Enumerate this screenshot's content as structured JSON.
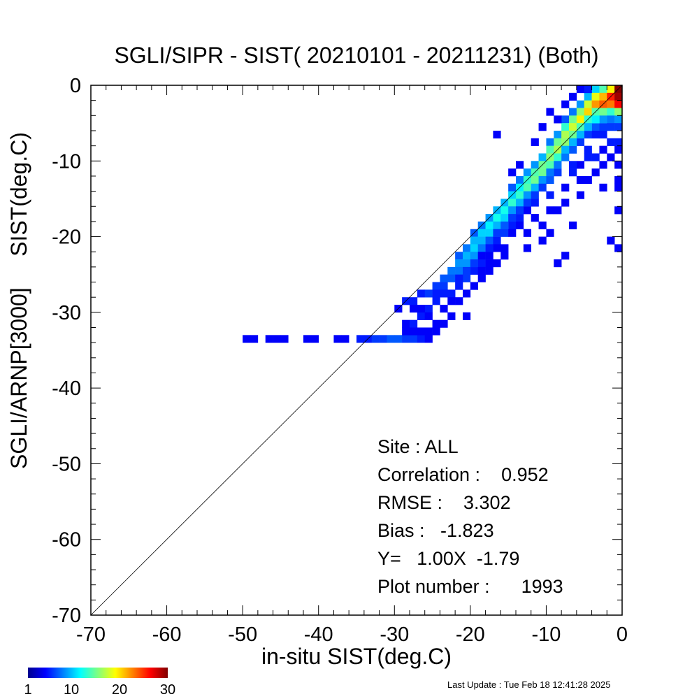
{
  "chart_data": {
    "type": "heatmap",
    "title": "SGLI/SIPR - SIST( 20210101 - 20211231) (Both)",
    "xlabel": "in-situ SIST(deg.C)",
    "ylabel": "SGLI/ARNP[3000]     SIST(deg.C)",
    "xlim": [
      -70,
      0
    ],
    "ylim": [
      -70,
      0
    ],
    "x_ticks": [
      "-70",
      "-60",
      "-50",
      "-40",
      "-30",
      "-20",
      "-10",
      "0"
    ],
    "y_ticks": [
      "0",
      "-10",
      "-20",
      "-30",
      "-40",
      "-50",
      "-60",
      "-70"
    ],
    "reference_line": "1:1",
    "grid": false,
    "stats": [
      "Site : ALL",
      "Correlation :    0.952",
      "RMSE :    3.302",
      "Bias :   -1.823",
      "Y=   1.00X  -1.79",
      "Plot number :      1993"
    ],
    "colorbar": {
      "colormap": "jet",
      "min": 1,
      "max": 30,
      "labels": [
        "1",
        "10",
        "20",
        "30"
      ]
    },
    "density_cells_note": "2-D histogram of counts per 1 deg.C bin",
    "cells": [
      [
        -49.5,
        -33.5,
        1
      ],
      [
        -48.5,
        -33.5,
        1
      ],
      [
        -46.5,
        -33.5,
        1
      ],
      [
        -45.5,
        -33.5,
        1
      ],
      [
        -44.5,
        -33.5,
        1
      ],
      [
        -41.5,
        -33.5,
        1
      ],
      [
        -40.5,
        -33.5,
        1
      ],
      [
        -37.5,
        -33.5,
        1
      ],
      [
        -36.5,
        -33.5,
        1
      ],
      [
        -34.5,
        -33.5,
        2
      ],
      [
        -33.5,
        -33.5,
        2
      ],
      [
        -32.5,
        -33.5,
        3
      ],
      [
        -31.5,
        -33.5,
        3
      ],
      [
        -30.5,
        -33.5,
        4
      ],
      [
        -29.5,
        -33.5,
        4
      ],
      [
        -28.5,
        -33.5,
        3
      ],
      [
        -27.5,
        -33.5,
        3
      ],
      [
        -26.5,
        -33.5,
        2
      ],
      [
        -25.5,
        -33.5,
        1
      ],
      [
        -29.5,
        -29.5,
        1
      ],
      [
        -28.5,
        -28.5,
        2
      ],
      [
        -27.5,
        -28.5,
        2
      ],
      [
        -27.5,
        -29.5,
        1
      ],
      [
        -28.5,
        -31.5,
        1
      ],
      [
        -27.5,
        -31.5,
        2
      ],
      [
        -26.5,
        -30.5,
        2
      ],
      [
        -26.5,
        -27.5,
        2
      ],
      [
        -25.5,
        -27.5,
        3
      ],
      [
        -25.5,
        -29.5,
        2
      ],
      [
        -25.5,
        -30.5,
        1
      ],
      [
        -24.5,
        -26.5,
        3
      ],
      [
        -24.5,
        -28.5,
        2
      ],
      [
        -24.5,
        -32.5,
        1
      ],
      [
        -23.5,
        -25.5,
        4
      ],
      [
        -23.5,
        -26.5,
        3
      ],
      [
        -23.5,
        -29.5,
        1
      ],
      [
        -23.5,
        -31.5,
        1
      ],
      [
        -22.5,
        -24.5,
        5
      ],
      [
        -22.5,
        -25.5,
        4
      ],
      [
        -22.5,
        -27.5,
        2
      ],
      [
        -22.5,
        -30.5,
        1
      ],
      [
        -21.5,
        -22.5,
        4
      ],
      [
        -21.5,
        -23.5,
        6
      ],
      [
        -21.5,
        -24.5,
        5
      ],
      [
        -21.5,
        -26.5,
        2
      ],
      [
        -21.5,
        -28.5,
        1
      ],
      [
        -20.5,
        -21.5,
        5
      ],
      [
        -20.5,
        -22.5,
        7
      ],
      [
        -20.5,
        -23.5,
        6
      ],
      [
        -20.5,
        -25.5,
        3
      ],
      [
        -20.5,
        -30.5,
        1
      ],
      [
        -19.5,
        -19.5,
        4
      ],
      [
        -19.5,
        -20.5,
        7
      ],
      [
        -19.5,
        -21.5,
        8
      ],
      [
        -19.5,
        -22.5,
        6
      ],
      [
        -19.5,
        -24.5,
        2
      ],
      [
        -18.5,
        -18.5,
        5
      ],
      [
        -18.5,
        -19.5,
        8
      ],
      [
        -18.5,
        -20.5,
        7
      ],
      [
        -18.5,
        -21.5,
        5
      ],
      [
        -18.5,
        -23.5,
        2
      ],
      [
        -17.5,
        -17.5,
        6
      ],
      [
        -17.5,
        -18.5,
        9
      ],
      [
        -17.5,
        -19.5,
        8
      ],
      [
        -17.5,
        -20.5,
        4
      ],
      [
        -17.5,
        -22.5,
        1
      ],
      [
        -16.5,
        -16.5,
        7
      ],
      [
        -16.5,
        -17.5,
        10
      ],
      [
        -16.5,
        -18.5,
        7
      ],
      [
        -16.5,
        -20.5,
        2
      ],
      [
        -16.5,
        -23.5,
        1
      ],
      [
        -15.5,
        -15.5,
        7
      ],
      [
        -15.5,
        -16.5,
        10
      ],
      [
        -15.5,
        -17.5,
        8
      ],
      [
        -15.5,
        -19.5,
        3
      ],
      [
        -14.5,
        -13.5,
        4
      ],
      [
        -14.5,
        -14.5,
        8
      ],
      [
        -14.5,
        -15.5,
        11
      ],
      [
        -14.5,
        -16.5,
        6
      ],
      [
        -14.5,
        -18.5,
        2
      ],
      [
        -13.5,
        -12.5,
        5
      ],
      [
        -13.5,
        -13.5,
        9
      ],
      [
        -13.5,
        -14.5,
        11
      ],
      [
        -13.5,
        -15.5,
        7
      ],
      [
        -13.5,
        -17.5,
        2
      ],
      [
        -12.5,
        -11.5,
        6
      ],
      [
        -12.5,
        -12.5,
        11
      ],
      [
        -12.5,
        -13.5,
        12
      ],
      [
        -12.5,
        -14.5,
        6
      ],
      [
        -12.5,
        -16.5,
        1
      ],
      [
        -11.5,
        -10.5,
        6
      ],
      [
        -11.5,
        -11.5,
        12
      ],
      [
        -11.5,
        -12.5,
        13
      ],
      [
        -11.5,
        -13.5,
        7
      ],
      [
        -11.5,
        -15.5,
        2
      ],
      [
        -10.5,
        -9.5,
        7
      ],
      [
        -10.5,
        -10.5,
        13
      ],
      [
        -10.5,
        -11.5,
        13
      ],
      [
        -10.5,
        -12.5,
        6
      ],
      [
        -10.5,
        -18.5,
        1
      ],
      [
        -9.5,
        -7.5,
        5
      ],
      [
        -9.5,
        -8.5,
        12
      ],
      [
        -9.5,
        -9.5,
        14
      ],
      [
        -9.5,
        -10.5,
        12
      ],
      [
        -9.5,
        -12.5,
        4
      ],
      [
        -9.5,
        -14.5,
        2
      ],
      [
        -8.5,
        -6.5,
        6
      ],
      [
        -8.5,
        -7.5,
        13
      ],
      [
        -8.5,
        -8.5,
        15
      ],
      [
        -8.5,
        -9.5,
        11
      ],
      [
        -8.5,
        -11.5,
        3
      ],
      [
        -8.5,
        -16.5,
        1
      ],
      [
        -7.5,
        -4.5,
        4
      ],
      [
        -7.5,
        -5.5,
        11
      ],
      [
        -7.5,
        -6.5,
        15
      ],
      [
        -7.5,
        -7.5,
        14
      ],
      [
        -7.5,
        -9.5,
        5
      ],
      [
        -7.5,
        -13.5,
        1
      ],
      [
        -6.5,
        -3.5,
        5
      ],
      [
        -6.5,
        -4.5,
        13
      ],
      [
        -6.5,
        -5.5,
        16
      ],
      [
        -6.5,
        -6.5,
        13
      ],
      [
        -6.5,
        -8.5,
        4
      ],
      [
        -6.5,
        -11.5,
        2
      ],
      [
        -5.5,
        -2.5,
        6
      ],
      [
        -5.5,
        -3.5,
        14
      ],
      [
        -5.5,
        -4.5,
        18
      ],
      [
        -5.5,
        -5.5,
        12
      ],
      [
        -5.5,
        -7.5,
        3
      ],
      [
        -5.5,
        -10.5,
        1
      ],
      [
        -4.5,
        -1.5,
        7
      ],
      [
        -4.5,
        -2.5,
        16
      ],
      [
        -4.5,
        -3.5,
        19
      ],
      [
        -4.5,
        -4.5,
        11
      ],
      [
        -4.5,
        -6.5,
        3
      ],
      [
        -4.5,
        -9.5,
        2
      ],
      [
        -3.5,
        -0.5,
        8
      ],
      [
        -3.5,
        -1.5,
        17
      ],
      [
        -3.5,
        -2.5,
        21
      ],
      [
        -3.5,
        -3.5,
        12
      ],
      [
        -3.5,
        -5.5,
        4
      ],
      [
        -2.5,
        -0.5,
        12
      ],
      [
        -2.5,
        -1.5,
        20
      ],
      [
        -2.5,
        -2.5,
        23
      ],
      [
        -2.5,
        -3.5,
        13
      ],
      [
        -2.5,
        -5.5,
        3
      ],
      [
        -2.5,
        -8.5,
        1
      ],
      [
        -1.5,
        -0.5,
        18
      ],
      [
        -1.5,
        -1.5,
        25
      ],
      [
        -1.5,
        -2.5,
        22
      ],
      [
        -1.5,
        -3.5,
        11
      ],
      [
        -1.5,
        -4.5,
        5
      ],
      [
        -1.5,
        -7.5,
        2
      ],
      [
        -0.5,
        -0.5,
        30
      ],
      [
        -0.5,
        -1.5,
        29
      ],
      [
        -0.5,
        -2.5,
        26
      ],
      [
        -0.5,
        -3.5,
        14
      ],
      [
        -0.5,
        -4.5,
        6
      ],
      [
        -0.5,
        -5.5,
        3
      ],
      [
        -0.5,
        -7.5,
        2
      ],
      [
        -0.5,
        -10.5,
        1
      ],
      [
        -0.5,
        -13.5,
        1
      ],
      [
        -0.5,
        -16.5,
        1
      ],
      [
        -0.5,
        -21.5,
        1
      ],
      [
        -1.5,
        -20.5,
        1
      ],
      [
        -2.5,
        -13.5,
        1
      ],
      [
        -3.5,
        -9.5,
        2
      ],
      [
        -4.5,
        -12.5,
        1
      ],
      [
        -5.5,
        -14.5,
        1
      ],
      [
        -6.5,
        -18.5,
        1
      ],
      [
        -7.5,
        -22.5,
        1
      ],
      [
        -8.5,
        -23.5,
        1
      ],
      [
        -9.5,
        -19.5,
        1
      ],
      [
        -10.5,
        -20.5,
        1
      ],
      [
        -11.5,
        -17.5,
        1
      ],
      [
        -12.5,
        -19.5,
        1
      ],
      [
        -13.5,
        -18.5,
        1
      ],
      [
        -14.5,
        -19.5,
        1
      ],
      [
        -15.5,
        -21.5,
        1
      ],
      [
        -16.5,
        -21.5,
        1
      ],
      [
        -18.5,
        -22.5,
        1
      ],
      [
        -16.5,
        -6.5,
        1
      ],
      [
        -14.5,
        -11.5,
        1
      ],
      [
        -13.5,
        -10.5,
        1
      ],
      [
        -11.5,
        -7.5,
        1
      ],
      [
        -10.5,
        -5.5,
        1
      ],
      [
        -9.5,
        -3.5,
        1
      ],
      [
        -8.5,
        -4.5,
        1
      ],
      [
        -7.5,
        -2.5,
        1
      ],
      [
        -6.5,
        -1.5,
        1
      ],
      [
        -5.5,
        -0.5,
        1
      ],
      [
        -4.5,
        -0.5,
        2
      ],
      [
        -2.5,
        -4.5,
        6
      ],
      [
        -1.5,
        -5.5,
        3
      ],
      [
        -3.5,
        -6.5,
        2
      ],
      [
        -6.5,
        -10.5,
        2
      ],
      [
        -4.5,
        -8.5,
        2
      ],
      [
        -2.5,
        -6.5,
        2
      ],
      [
        -1.5,
        -9.5,
        1
      ],
      [
        -0.5,
        -8.5,
        1
      ],
      [
        -3.5,
        -11.5,
        1
      ],
      [
        -2.5,
        -10.5,
        1
      ],
      [
        -0.5,
        -12.5,
        1
      ],
      [
        -5.5,
        -12.5,
        1
      ],
      [
        -7.5,
        -15.5,
        1
      ],
      [
        -9.5,
        -16.5,
        1
      ],
      [
        -12.5,
        -21.5,
        1
      ],
      [
        -15.5,
        -22.5,
        1
      ],
      [
        -17.5,
        -24.5,
        1
      ],
      [
        -19.5,
        -26.5,
        1
      ],
      [
        -22.5,
        -28.5,
        1
      ],
      [
        -24.5,
        -31.5,
        1
      ],
      [
        -25.5,
        -32.5,
        1
      ],
      [
        -26.5,
        -32.5,
        1
      ],
      [
        -27.5,
        -32.5,
        1
      ],
      [
        -28.5,
        -32.5,
        1
      ],
      [
        -20.5,
        -27.5,
        1
      ],
      [
        -18.5,
        -25.5,
        1
      ],
      [
        -17.5,
        -21.5,
        2
      ],
      [
        -23.5,
        -27.5,
        2
      ],
      [
        -24.5,
        -27.5,
        2
      ],
      [
        -26.5,
        -29.5,
        1
      ],
      [
        -21.5,
        -25.5,
        2
      ],
      [
        -20.5,
        -24.5,
        3
      ],
      [
        -19.5,
        -23.5,
        3
      ],
      [
        -18.5,
        -24.5,
        1
      ],
      [
        -17.5,
        -23.5,
        1
      ],
      [
        -16.5,
        -19.5,
        3
      ],
      [
        -15.5,
        -18.5,
        4
      ],
      [
        -14.5,
        -17.5,
        3
      ],
      [
        -13.5,
        -16.5,
        3
      ],
      [
        -12.5,
        -15.5,
        3
      ],
      [
        -11.5,
        -14.5,
        3
      ],
      [
        -10.5,
        -13.5,
        3
      ],
      [
        -9.5,
        -11.5,
        5
      ],
      [
        -8.5,
        -10.5,
        5
      ],
      [
        -7.5,
        -8.5,
        7
      ],
      [
        -6.5,
        -7.5,
        7
      ],
      [
        -5.5,
        -6.5,
        7
      ],
      [
        -4.5,
        -5.5,
        7
      ],
      [
        -3.5,
        -4.5,
        9
      ]
    ]
  },
  "footer": {
    "last_update": "Last Update : Tue Feb 18 12:41:28 2025"
  }
}
